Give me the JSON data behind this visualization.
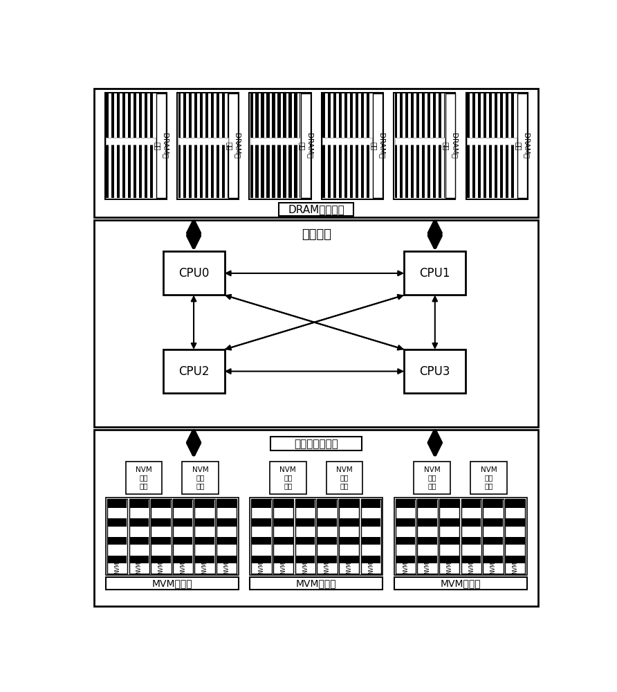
{
  "bg_color": "#ffffff",
  "dram_region_label": "DRAM存储区域",
  "compute_region_label": "计算区域",
  "nvm_region_label": "非易失存储区域",
  "cpu0_label": "CPU0",
  "cpu1_label": "CPU1",
  "cpu2_label": "CPU2",
  "cpu3_label": "CPU3",
  "nvm_chip_label": "NVM\n控制\n芯片",
  "mvm_board_label": "MVM内存板",
  "dram_label": "DRAM内\n存条"
}
